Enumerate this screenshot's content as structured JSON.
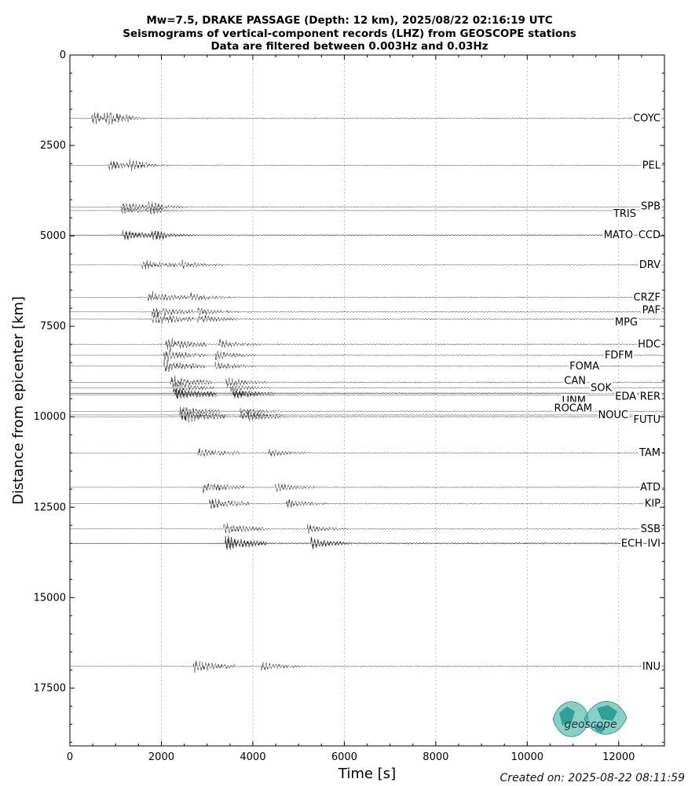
{
  "chart_data": {
    "type": "line",
    "title_lines": [
      "Mw=7.5, DRAKE PASSAGE (Depth: 12 km), 2025/08/22 02:16:19 UTC",
      "Seismograms of vertical-component records (LHZ) from GEOSCOPE stations",
      "Data are filtered between 0.003Hz and 0.03Hz"
    ],
    "xlabel": "Time [s]",
    "ylabel": "Distance from epicenter [km]",
    "xlim": [
      0,
      13000
    ],
    "ylim": [
      19100,
      0
    ],
    "x_ticks": [
      0,
      2000,
      4000,
      6000,
      8000,
      10000,
      12000
    ],
    "x_tick_labels": [
      "0",
      "2000",
      "4000",
      "6000",
      "8000",
      "10000",
      "12000"
    ],
    "y_ticks": [
      0,
      2500,
      5000,
      7500,
      10000,
      12500,
      15000,
      17500
    ],
    "y_tick_labels": [
      "0",
      "2500",
      "5000",
      "7500",
      "10000",
      "12500",
      "15000",
      "17500"
    ],
    "grid": "vertical dotted",
    "stations": [
      {
        "name": "COYC",
        "distance": 1750,
        "p_arrival": 480,
        "amp": 0.9
      },
      {
        "name": "PEL",
        "distance": 3050,
        "p_arrival": 840,
        "amp": 0.7
      },
      {
        "name": "SPB",
        "distance": 4200,
        "p_arrival": 1100,
        "amp": 0.7
      },
      {
        "name": "TRIS",
        "distance": 4300,
        "p_arrival": 1120,
        "amp": 0.5
      },
      {
        "name": "CCD",
        "distance": 4980,
        "p_arrival": 1150,
        "amp": 0.7
      },
      {
        "name": "MATO",
        "distance": 4980,
        "p_arrival": 1200,
        "amp": 0.7
      },
      {
        "name": "DRV",
        "distance": 5800,
        "p_arrival": 1580,
        "amp": 0.7
      },
      {
        "name": "CRZF",
        "distance": 6700,
        "p_arrival": 1700,
        "amp": 0.8
      },
      {
        "name": "PAF",
        "distance": 7100,
        "p_arrival": 1800,
        "amp": 0.8
      },
      {
        "name": "MPG",
        "distance": 7300,
        "p_arrival": 1800,
        "amp": 0.9
      },
      {
        "name": "HDC",
        "distance": 8000,
        "p_arrival": 2100,
        "amp": 0.9
      },
      {
        "name": "FDFM",
        "distance": 8300,
        "p_arrival": 2050,
        "amp": 0.8
      },
      {
        "name": "FOMA",
        "distance": 8600,
        "p_arrival": 2050,
        "amp": 0.8
      },
      {
        "name": "CAN",
        "distance": 9050,
        "p_arrival": 2200,
        "amp": 0.9
      },
      {
        "name": "SOK",
        "distance": 9200,
        "p_arrival": 2250,
        "amp": 0.7
      },
      {
        "name": "EDA",
        "distance": 9350,
        "p_arrival": 2300,
        "amp": 0.7
      },
      {
        "name": "RER",
        "distance": 9350,
        "p_arrival": 2300,
        "amp": 0.7
      },
      {
        "name": "UNM",
        "distance": 9400,
        "p_arrival": 2300,
        "amp": 0.7
      },
      {
        "name": "ROCAM",
        "distance": 9850,
        "p_arrival": 2400,
        "amp": 0.7
      },
      {
        "name": "NOUC",
        "distance": 9950,
        "p_arrival": 2400,
        "amp": 0.7
      },
      {
        "name": "FUTU",
        "distance": 10000,
        "p_arrival": 2500,
        "amp": 0.9
      },
      {
        "name": "TAM",
        "distance": 11000,
        "p_arrival": 2800,
        "amp": 0.7
      },
      {
        "name": "ATD",
        "distance": 11950,
        "p_arrival": 2900,
        "amp": 0.8
      },
      {
        "name": "KIP",
        "distance": 12400,
        "p_arrival": 3050,
        "amp": 0.8
      },
      {
        "name": "SSB",
        "distance": 13100,
        "p_arrival": 3350,
        "amp": 0.8
      },
      {
        "name": "ECH",
        "distance": 13500,
        "p_arrival": 3400,
        "amp": 1.0
      },
      {
        "name": "IVI",
        "distance": 13500,
        "p_arrival": 3400,
        "amp": 1.0
      },
      {
        "name": "INU",
        "distance": 16900,
        "p_arrival": 2700,
        "amp": 0.9
      }
    ]
  },
  "colors": {
    "trace": "#1a1a1a",
    "grid": "#b0b0b0",
    "axis": "#000000",
    "logo": "#2aa69a"
  },
  "logo": {
    "text": "geoscope"
  },
  "footer": {
    "created": "Created on: 2025-08-22 08:11:59"
  }
}
